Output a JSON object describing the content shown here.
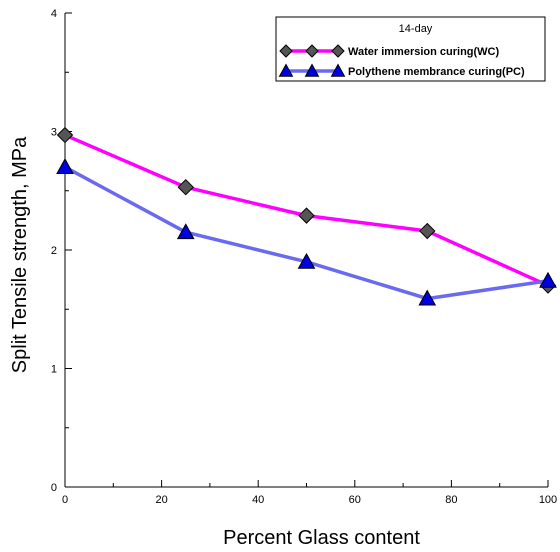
{
  "chart_data": {
    "type": "line",
    "xlabel": "Percent Glass content",
    "ylabel": "Split Tensile strength, MPa",
    "xlim": [
      0,
      100
    ],
    "ylim": [
      0,
      4
    ],
    "x_ticks": [
      0,
      20,
      40,
      60,
      80,
      100
    ],
    "y_ticks": [
      0,
      1,
      2,
      3,
      4
    ],
    "grid": false,
    "legend_title": "14-day",
    "legend_position": "top-right",
    "series": [
      {
        "name": "Water immersion curing(WC)",
        "x": [
          0,
          25,
          50,
          75,
          100
        ],
        "values": [
          2.97,
          2.53,
          2.29,
          2.16,
          1.7
        ],
        "line_color": "#ff00ff",
        "marker": "diamond",
        "marker_color": "#555555"
      },
      {
        "name": "Polythene membrance curing(PC)",
        "x": [
          0,
          25,
          50,
          75,
          100
        ],
        "values": [
          2.7,
          2.15,
          1.9,
          1.59,
          1.74
        ],
        "line_color": "#6a6af0",
        "marker": "triangle",
        "marker_color": "#0000e0"
      }
    ]
  }
}
